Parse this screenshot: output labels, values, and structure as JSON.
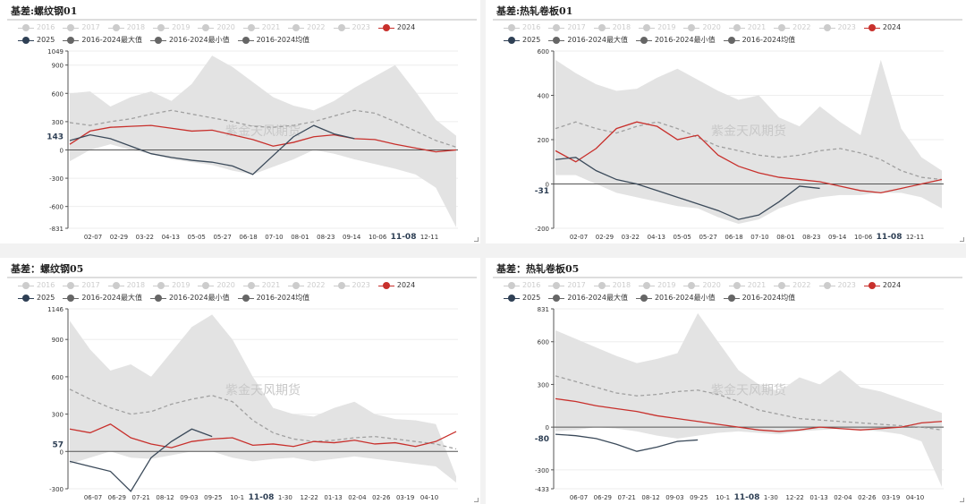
{
  "colors": {
    "band": "#e3e3e3",
    "avg": "#a0a0a0",
    "y2024": "#c8302c",
    "y2025": "#3b4a5a",
    "grid": "#eeeeee"
  },
  "legend": {
    "items": [
      {
        "label": "2016",
        "active": false
      },
      {
        "label": "2017",
        "active": false
      },
      {
        "label": "2018",
        "active": false
      },
      {
        "label": "2019",
        "active": false
      },
      {
        "label": "2020",
        "active": false
      },
      {
        "label": "2021",
        "active": false
      },
      {
        "label": "2022",
        "active": false
      },
      {
        "label": "2023",
        "active": false
      },
      {
        "label": "2024",
        "active": true,
        "color": "#c8302c"
      },
      {
        "label": "2025",
        "active": true,
        "color": "#2f4055"
      },
      {
        "label": "2016-2024最大值",
        "active": true,
        "color": "#666"
      },
      {
        "label": "2016-2024最小值",
        "active": true,
        "color": "#666"
      },
      {
        "label": "2016-2024均值",
        "active": true,
        "color": "#666"
      }
    ]
  },
  "watermark": "紫金天风期货",
  "chart_data": [
    {
      "type": "area",
      "title": "基差:螺纹钢01",
      "ylim": [
        -831,
        1049
      ],
      "yticks": [
        "1049",
        "900",
        "600",
        "300",
        "0",
        "-300",
        "-600",
        "-831"
      ],
      "highlight_y": {
        "label": "143",
        "value": 143
      },
      "xticks": [
        "02-07",
        "02-29",
        "03-22",
        "04-13",
        "05-05",
        "05-27",
        "06-18",
        "07-10",
        "08-01",
        "08-23",
        "09-14",
        "10-06",
        "11-08",
        "12-11"
      ],
      "highlight_x": "11-08",
      "max": [
        600,
        620,
        460,
        560,
        620,
        520,
        700,
        1000,
        880,
        720,
        560,
        470,
        420,
        520,
        660,
        780,
        900,
        620,
        320,
        150
      ],
      "min": [
        -120,
        0,
        60,
        0,
        -40,
        -100,
        -130,
        -160,
        -220,
        -260,
        -180,
        -100,
        0,
        -40,
        -100,
        -150,
        -200,
        -260,
        -400,
        -820
      ],
      "avg": [
        290,
        260,
        300,
        330,
        380,
        420,
        380,
        340,
        300,
        250,
        240,
        260,
        300,
        360,
        420,
        390,
        300,
        200,
        100,
        30
      ],
      "y2024": [
        60,
        200,
        240,
        250,
        260,
        230,
        200,
        210,
        160,
        110,
        40,
        80,
        140,
        160,
        120,
        110,
        60,
        20,
        -20,
        0
      ],
      "y2025": [
        100,
        160,
        120,
        40,
        -40,
        -80,
        -110,
        -130,
        -170,
        -260,
        -60,
        140,
        260,
        170,
        120,
        null,
        null,
        null,
        null,
        null
      ]
    },
    {
      "type": "area",
      "title": "基差:热轧卷板01",
      "ylim": [
        -200,
        600
      ],
      "yticks": [
        "600",
        "400",
        "200",
        "0",
        "-200"
      ],
      "highlight_y": {
        "label": "-31",
        "value": -31
      },
      "xticks": [
        "02-07",
        "02-29",
        "03-22",
        "04-13",
        "05-05",
        "05-27",
        "06-18",
        "07-10",
        "08-01",
        "08-23",
        "09-14",
        "10-06",
        "11-08",
        "12-11"
      ],
      "highlight_x": "11-08",
      "max": [
        560,
        500,
        450,
        420,
        430,
        480,
        520,
        470,
        420,
        380,
        400,
        300,
        260,
        350,
        280,
        220,
        560,
        250,
        120,
        60
      ],
      "min": [
        40,
        40,
        0,
        -40,
        -60,
        -80,
        -100,
        -110,
        -150,
        -180,
        -160,
        -110,
        -80,
        -60,
        -50,
        -50,
        -40,
        -40,
        -60,
        -110
      ],
      "avg": [
        250,
        280,
        250,
        230,
        260,
        280,
        250,
        210,
        170,
        150,
        130,
        120,
        130,
        150,
        160,
        140,
        110,
        60,
        30,
        20
      ],
      "y2024": [
        150,
        100,
        160,
        250,
        280,
        260,
        200,
        220,
        130,
        80,
        50,
        30,
        20,
        10,
        -10,
        -30,
        -40,
        -20,
        0,
        20
      ],
      "y2025": [
        110,
        120,
        60,
        20,
        0,
        -30,
        -60,
        -90,
        -120,
        -160,
        -140,
        -80,
        -10,
        -20,
        null,
        null,
        null,
        null,
        null,
        null
      ]
    },
    {
      "type": "area",
      "title": "基差：螺纹钢05",
      "ylim": [
        -300,
        1146
      ],
      "yticks": [
        "1146",
        "900",
        "600",
        "300",
        "0",
        "-300"
      ],
      "highlight_y": {
        "label": "57",
        "value": 57
      },
      "xticks": [
        "06-07",
        "06-29",
        "07-21",
        "08-12",
        "09-03",
        "09-25",
        "10-1",
        "11-08",
        "1-30",
        "12-22",
        "01-13",
        "02-04",
        "02-26",
        "03-19",
        "04-10"
      ],
      "highlight_x": "11-08",
      "max": [
        1050,
        820,
        650,
        700,
        600,
        800,
        1000,
        1100,
        900,
        600,
        350,
        300,
        280,
        350,
        400,
        300,
        260,
        250,
        220,
        -200
      ],
      "min": [
        -100,
        -50,
        0,
        -50,
        -60,
        -30,
        0,
        0,
        -50,
        -80,
        -60,
        -50,
        -80,
        -60,
        -40,
        -60,
        -80,
        -100,
        -120,
        -250
      ],
      "avg": [
        500,
        420,
        350,
        300,
        320,
        380,
        420,
        450,
        400,
        250,
        150,
        100,
        80,
        90,
        110,
        120,
        100,
        80,
        60,
        20
      ],
      "y2024": [
        180,
        150,
        220,
        110,
        60,
        30,
        80,
        100,
        110,
        50,
        60,
        40,
        80,
        70,
        90,
        60,
        70,
        40,
        80,
        160
      ],
      "y2025": [
        -80,
        -120,
        -160,
        -320,
        -50,
        80,
        180,
        120,
        null,
        null,
        null,
        null,
        null,
        null,
        null,
        null,
        null,
        null,
        null,
        null
      ]
    },
    {
      "type": "area",
      "title": "基差：热轧卷板05",
      "ylim": [
        -433,
        831
      ],
      "yticks": [
        "831",
        "600",
        "300",
        "0",
        "-80",
        "-300",
        "-433"
      ],
      "highlight_y": {
        "label": "-80",
        "value": -80
      },
      "xticks": [
        "06-07",
        "06-29",
        "07-21",
        "08-12",
        "09-03",
        "09-25",
        "10-1",
        "11-08",
        "1-30",
        "12-22",
        "01-13",
        "02-04",
        "02-26",
        "03-19",
        "04-10"
      ],
      "highlight_x": "11-08",
      "max": [
        680,
        620,
        560,
        500,
        450,
        480,
        520,
        800,
        600,
        400,
        300,
        250,
        350,
        300,
        400,
        280,
        250,
        200,
        150,
        100
      ],
      "min": [
        -30,
        -20,
        0,
        -10,
        -30,
        -60,
        -80,
        -60,
        -40,
        -30,
        -40,
        -50,
        -30,
        -20,
        -10,
        -20,
        -30,
        -50,
        -100,
        -420
      ],
      "avg": [
        360,
        320,
        280,
        240,
        220,
        230,
        250,
        260,
        230,
        180,
        120,
        90,
        60,
        50,
        40,
        30,
        20,
        10,
        0,
        -20
      ],
      "y2024": [
        200,
        180,
        150,
        130,
        110,
        80,
        60,
        40,
        20,
        0,
        -20,
        -30,
        -20,
        0,
        -10,
        -20,
        -10,
        0,
        30,
        40
      ],
      "y2025": [
        -50,
        -60,
        -80,
        -120,
        -170,
        -140,
        -100,
        -90,
        null,
        null,
        null,
        null,
        null,
        null,
        null,
        null,
        null,
        null,
        null,
        null
      ]
    }
  ]
}
